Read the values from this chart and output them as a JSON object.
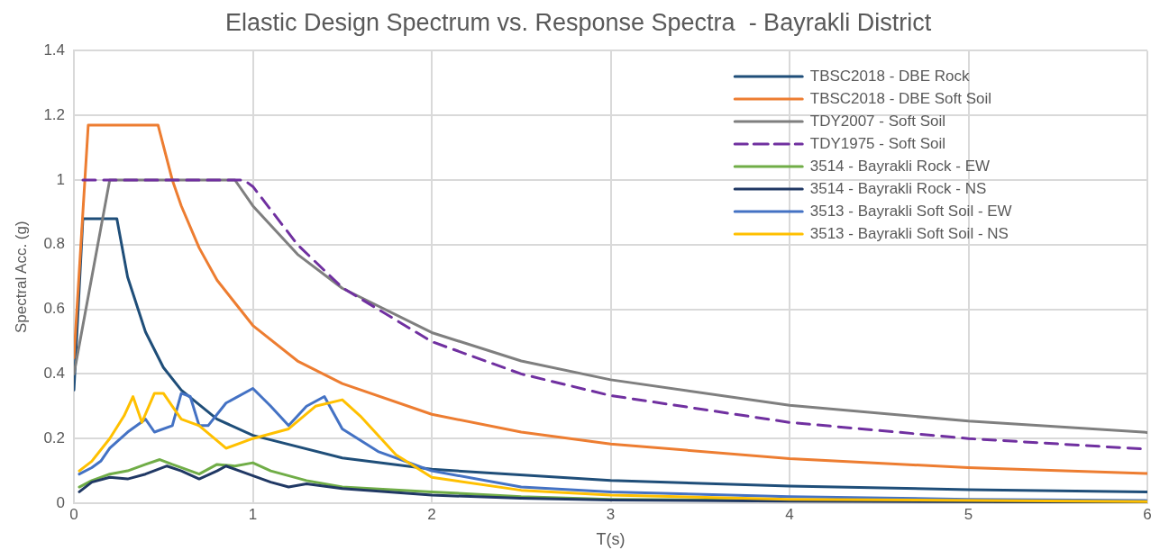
{
  "chart_data": {
    "type": "line",
    "title": "Elastic Design Spectrum vs. Response Spectra  - Bayrakli District",
    "xlabel": "T(s)",
    "ylabel": "Spectral Acc. (g)",
    "xlim": [
      0,
      6
    ],
    "xticks": [
      0,
      1,
      2,
      3,
      4,
      5,
      6
    ],
    "ylim": [
      0,
      1.4
    ],
    "yticks": [
      0,
      0.2,
      0.4,
      0.6,
      0.8,
      1,
      1.2,
      1.4
    ],
    "grid": true,
    "legend": "top right",
    "marker": "none",
    "line_style": "solid",
    "series": [
      {
        "name": "TBSC2018 - DBE Rock",
        "color": "#1f4e79",
        "x": [
          0,
          0.05,
          0.24,
          0.3,
          0.4,
          0.5,
          0.6,
          0.8,
          1,
          1.5,
          2,
          3,
          4,
          5,
          6
        ],
        "values": [
          0.35,
          0.88,
          0.88,
          0.7,
          0.53,
          0.42,
          0.35,
          0.26,
          0.21,
          0.14,
          0.105,
          0.07,
          0.053,
          0.042,
          0.035
        ]
      },
      {
        "name": "TBSC2018 - DBE Soft Soil",
        "color": "#ed7d31",
        "x": [
          0,
          0.08,
          0.47,
          0.55,
          0.6,
          0.7,
          0.8,
          1,
          1.25,
          1.5,
          2,
          2.5,
          3,
          4,
          5,
          6
        ],
        "values": [
          0.45,
          1.17,
          1.17,
          1.0,
          0.92,
          0.79,
          0.69,
          0.55,
          0.44,
          0.37,
          0.275,
          0.22,
          0.183,
          0.138,
          0.11,
          0.092
        ]
      },
      {
        "name": "TDY2007 - Soft Soil",
        "color": "#7f7f7f",
        "x": [
          0,
          0.2,
          0.9,
          1,
          1.25,
          1.5,
          2,
          2.5,
          3,
          4,
          5,
          6
        ],
        "values": [
          0.4,
          1.0,
          1.0,
          0.92,
          0.77,
          0.665,
          0.528,
          0.44,
          0.382,
          0.303,
          0.254,
          0.219
        ]
      },
      {
        "name": "TDY1975 - Soft Soil",
        "color": "#7030a0",
        "line_style": "dashed",
        "x": [
          0.05,
          0.95,
          1,
          1.25,
          1.5,
          2,
          2.5,
          3,
          4,
          5,
          6
        ],
        "values": [
          1.0,
          1.0,
          0.98,
          0.8,
          0.667,
          0.5,
          0.4,
          0.333,
          0.25,
          0.2,
          0.167
        ]
      },
      {
        "name": "3514 - Bayrakli Rock - EW",
        "color": "#70ad47",
        "x": [
          0.03,
          0.1,
          0.2,
          0.3,
          0.4,
          0.48,
          0.55,
          0.7,
          0.8,
          0.9,
          1.0,
          1.1,
          1.3,
          1.5,
          2,
          2.5,
          3,
          4,
          6
        ],
        "values": [
          0.05,
          0.07,
          0.09,
          0.1,
          0.12,
          0.135,
          0.12,
          0.09,
          0.12,
          0.115,
          0.125,
          0.1,
          0.07,
          0.05,
          0.035,
          0.02,
          0.012,
          0.008,
          0.005
        ]
      },
      {
        "name": "3514 - Bayrakli Rock - NS",
        "color": "#203864",
        "x": [
          0.03,
          0.1,
          0.2,
          0.3,
          0.4,
          0.52,
          0.6,
          0.7,
          0.8,
          0.85,
          0.95,
          1.1,
          1.2,
          1.3,
          1.5,
          2,
          2.5,
          3,
          4,
          6
        ],
        "values": [
          0.035,
          0.065,
          0.08,
          0.075,
          0.09,
          0.115,
          0.1,
          0.075,
          0.1,
          0.115,
          0.095,
          0.065,
          0.05,
          0.06,
          0.045,
          0.025,
          0.015,
          0.01,
          0.006,
          0.003
        ]
      },
      {
        "name": "3513 - Bayrakli Soft Soil - EW",
        "color": "#4472c4",
        "x": [
          0.03,
          0.1,
          0.15,
          0.2,
          0.3,
          0.4,
          0.45,
          0.55,
          0.6,
          0.65,
          0.7,
          0.75,
          0.85,
          1.0,
          1.1,
          1.2,
          1.3,
          1.4,
          1.5,
          1.7,
          2.0,
          2.5,
          3,
          4,
          5,
          6
        ],
        "values": [
          0.09,
          0.11,
          0.13,
          0.17,
          0.22,
          0.26,
          0.22,
          0.24,
          0.34,
          0.33,
          0.24,
          0.24,
          0.31,
          0.355,
          0.3,
          0.24,
          0.3,
          0.33,
          0.23,
          0.16,
          0.1,
          0.05,
          0.035,
          0.02,
          0.012,
          0.008
        ]
      },
      {
        "name": "3513 - Bayrakli Soft Soil - NS",
        "color": "#ffc000",
        "x": [
          0.03,
          0.1,
          0.2,
          0.28,
          0.33,
          0.38,
          0.45,
          0.5,
          0.55,
          0.6,
          0.7,
          0.85,
          1.0,
          1.2,
          1.35,
          1.5,
          1.6,
          1.8,
          2.0,
          2.5,
          3,
          4,
          6
        ],
        "values": [
          0.1,
          0.13,
          0.2,
          0.27,
          0.33,
          0.25,
          0.34,
          0.34,
          0.3,
          0.26,
          0.24,
          0.17,
          0.2,
          0.23,
          0.3,
          0.32,
          0.27,
          0.15,
          0.08,
          0.04,
          0.025,
          0.012,
          0.005
        ]
      }
    ]
  }
}
